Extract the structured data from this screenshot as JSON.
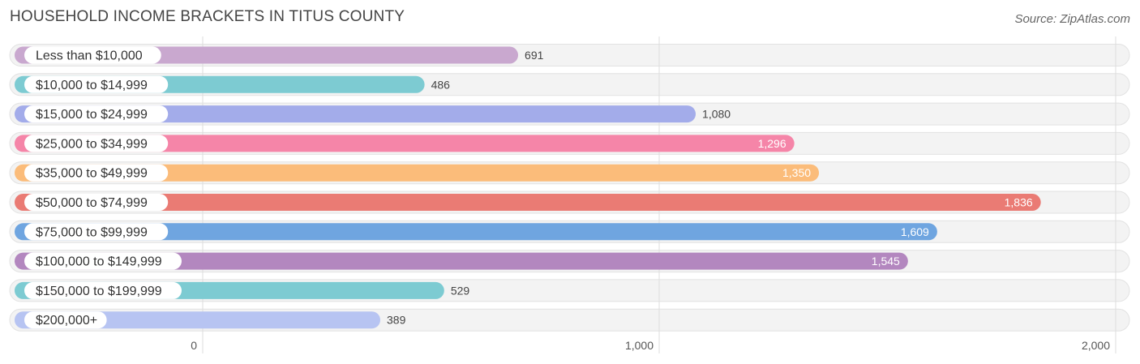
{
  "title": "HOUSEHOLD INCOME BRACKETS IN TITUS COUNTY",
  "source": "Source: ZipAtlas.com",
  "chart_data": {
    "type": "bar",
    "orientation": "horizontal",
    "title": "HOUSEHOLD INCOME BRACKETS IN TITUS COUNTY",
    "categories": [
      "Less than $10,000",
      "$10,000 to $14,999",
      "$15,000 to $24,999",
      "$25,000 to $34,999",
      "$35,000 to $49,999",
      "$50,000 to $74,999",
      "$75,000 to $99,999",
      "$100,000 to $149,999",
      "$150,000 to $199,999",
      "$200,000+"
    ],
    "values": [
      691,
      486,
      1080,
      1296,
      1350,
      1836,
      1609,
      1545,
      529,
      389
    ],
    "value_labels": [
      "691",
      "486",
      "1,080",
      "1,296",
      "1,350",
      "1,836",
      "1,609",
      "1,545",
      "529",
      "389"
    ],
    "colors": [
      "#c9a8cf",
      "#7dcbd2",
      "#a3acea",
      "#f585a8",
      "#fbbc7a",
      "#ea7b74",
      "#6fa5e0",
      "#b387bf",
      "#7dcbd2",
      "#b7c4f2"
    ],
    "xlim": [
      0,
      2000
    ],
    "x_ticks": [
      0,
      1000,
      2000
    ],
    "x_tick_labels": [
      "0",
      "1,000",
      "2,000"
    ],
    "grid": true,
    "legend": "none"
  }
}
